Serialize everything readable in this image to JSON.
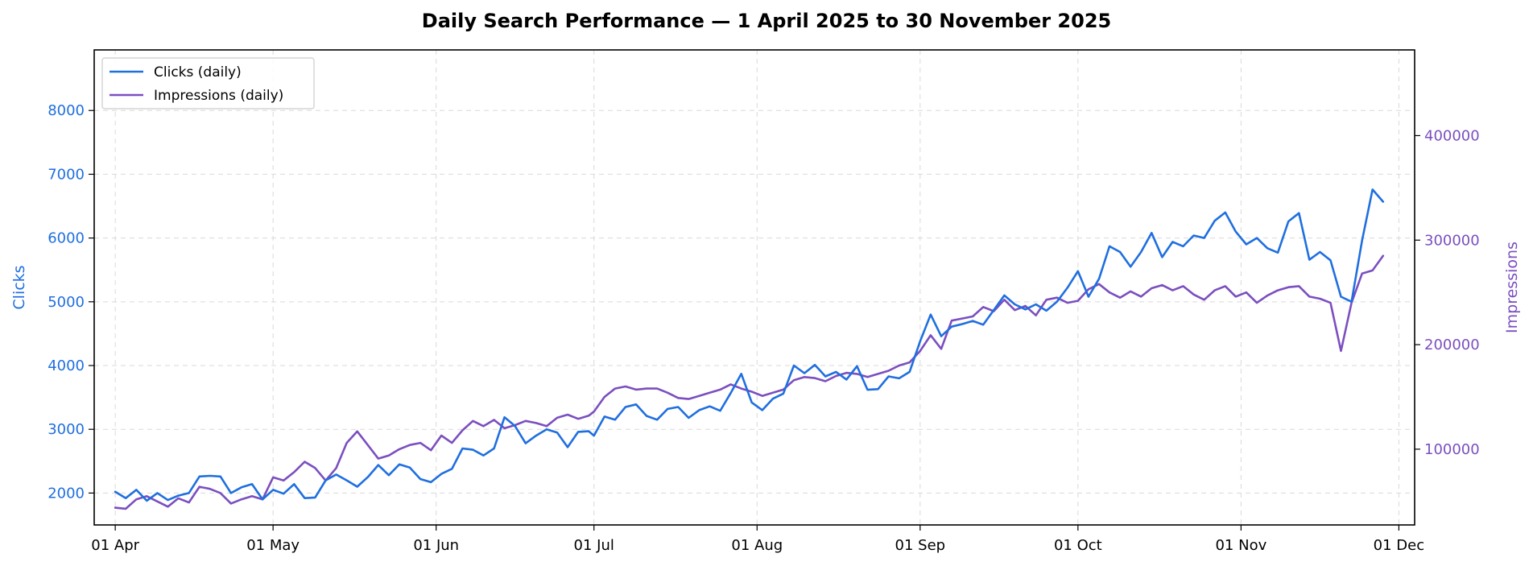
{
  "colors": {
    "clicks": "#1f6fdf",
    "impressions": "#7b4fbf"
  },
  "chart_data": {
    "type": "line",
    "title": "Daily Search Performance — 1 April 2025 to 30 November 2025",
    "xlabel": "",
    "ylabel": "Clicks",
    "y2label": "Impressions",
    "x_range": [
      "2025-03-28",
      "2025-12-04"
    ],
    "ylim": [
      1500,
      8950
    ],
    "y2lim": [
      27500,
      482000
    ],
    "x_ticks": [
      {
        "date": "2025-04-01",
        "label": "01 Apr"
      },
      {
        "date": "2025-05-01",
        "label": "01 May"
      },
      {
        "date": "2025-06-01",
        "label": "01 Jun"
      },
      {
        "date": "2025-07-01",
        "label": "01 Jul"
      },
      {
        "date": "2025-08-01",
        "label": "01 Aug"
      },
      {
        "date": "2025-09-01",
        "label": "01 Sep"
      },
      {
        "date": "2025-10-01",
        "label": "01 Oct"
      },
      {
        "date": "2025-11-01",
        "label": "01 Nov"
      },
      {
        "date": "2025-12-01",
        "label": "01 Dec"
      }
    ],
    "y_ticks": [
      2000,
      3000,
      4000,
      5000,
      6000,
      7000,
      8000
    ],
    "y2_ticks": [
      {
        "value": 100000,
        "label": "100000"
      },
      {
        "value": 200000,
        "label": "200000"
      },
      {
        "value": 300000,
        "label": "300000"
      },
      {
        "value": 400000,
        "label": "400000"
      }
    ],
    "grid": true,
    "legend_position": "top-left",
    "series": [
      {
        "name": "Clicks (daily)",
        "axis": "left",
        "points": [
          [
            "2025-04-01",
            2020
          ],
          [
            "2025-04-03",
            1920
          ],
          [
            "2025-04-05",
            2050
          ],
          [
            "2025-04-07",
            1880
          ],
          [
            "2025-04-09",
            2000
          ],
          [
            "2025-04-11",
            1890
          ],
          [
            "2025-04-13",
            1960
          ],
          [
            "2025-04-15",
            2000
          ],
          [
            "2025-04-17",
            2260
          ],
          [
            "2025-04-19",
            2270
          ],
          [
            "2025-04-21",
            2260
          ],
          [
            "2025-04-23",
            2000
          ],
          [
            "2025-04-25",
            2090
          ],
          [
            "2025-04-27",
            2140
          ],
          [
            "2025-04-29",
            1900
          ],
          [
            "2025-05-01",
            2050
          ],
          [
            "2025-05-03",
            1990
          ],
          [
            "2025-05-05",
            2140
          ],
          [
            "2025-05-07",
            1920
          ],
          [
            "2025-05-09",
            1930
          ],
          [
            "2025-05-11",
            2200
          ],
          [
            "2025-05-13",
            2290
          ],
          [
            "2025-05-15",
            2200
          ],
          [
            "2025-05-17",
            2100
          ],
          [
            "2025-05-19",
            2250
          ],
          [
            "2025-05-21",
            2440
          ],
          [
            "2025-05-23",
            2280
          ],
          [
            "2025-05-25",
            2450
          ],
          [
            "2025-05-27",
            2400
          ],
          [
            "2025-05-29",
            2220
          ],
          [
            "2025-05-31",
            2170
          ],
          [
            "2025-06-02",
            2300
          ],
          [
            "2025-06-04",
            2380
          ],
          [
            "2025-06-06",
            2700
          ],
          [
            "2025-06-08",
            2680
          ],
          [
            "2025-06-10",
            2590
          ],
          [
            "2025-06-12",
            2700
          ],
          [
            "2025-06-14",
            3190
          ],
          [
            "2025-06-16",
            3050
          ],
          [
            "2025-06-18",
            2780
          ],
          [
            "2025-06-20",
            2900
          ],
          [
            "2025-06-22",
            3000
          ],
          [
            "2025-06-24",
            2950
          ],
          [
            "2025-06-26",
            2720
          ],
          [
            "2025-06-28",
            2960
          ],
          [
            "2025-06-30",
            2970
          ],
          [
            "2025-07-01",
            2900
          ],
          [
            "2025-07-03",
            3200
          ],
          [
            "2025-07-05",
            3150
          ],
          [
            "2025-07-07",
            3350
          ],
          [
            "2025-07-09",
            3390
          ],
          [
            "2025-07-11",
            3210
          ],
          [
            "2025-07-13",
            3150
          ],
          [
            "2025-07-15",
            3320
          ],
          [
            "2025-07-17",
            3350
          ],
          [
            "2025-07-19",
            3180
          ],
          [
            "2025-07-21",
            3300
          ],
          [
            "2025-07-23",
            3360
          ],
          [
            "2025-07-25",
            3290
          ],
          [
            "2025-07-27",
            3570
          ],
          [
            "2025-07-29",
            3870
          ],
          [
            "2025-07-31",
            3420
          ],
          [
            "2025-08-02",
            3300
          ],
          [
            "2025-08-04",
            3480
          ],
          [
            "2025-08-06",
            3560
          ],
          [
            "2025-08-08",
            4000
          ],
          [
            "2025-08-10",
            3880
          ],
          [
            "2025-08-12",
            4010
          ],
          [
            "2025-08-14",
            3830
          ],
          [
            "2025-08-16",
            3900
          ],
          [
            "2025-08-18",
            3780
          ],
          [
            "2025-08-20",
            3990
          ],
          [
            "2025-08-22",
            3620
          ],
          [
            "2025-08-24",
            3630
          ],
          [
            "2025-08-26",
            3830
          ],
          [
            "2025-08-28",
            3800
          ],
          [
            "2025-08-30",
            3900
          ],
          [
            "2025-09-01",
            4380
          ],
          [
            "2025-09-03",
            4800
          ],
          [
            "2025-09-05",
            4460
          ],
          [
            "2025-09-07",
            4610
          ],
          [
            "2025-09-09",
            4650
          ],
          [
            "2025-09-11",
            4700
          ],
          [
            "2025-09-13",
            4640
          ],
          [
            "2025-09-15",
            4870
          ],
          [
            "2025-09-17",
            5100
          ],
          [
            "2025-09-19",
            4960
          ],
          [
            "2025-09-21",
            4880
          ],
          [
            "2025-09-23",
            4960
          ],
          [
            "2025-09-25",
            4860
          ],
          [
            "2025-09-27",
            5000
          ],
          [
            "2025-09-29",
            5220
          ],
          [
            "2025-10-01",
            5480
          ],
          [
            "2025-10-03",
            5080
          ],
          [
            "2025-10-05",
            5360
          ],
          [
            "2025-10-07",
            5870
          ],
          [
            "2025-10-09",
            5780
          ],
          [
            "2025-10-11",
            5550
          ],
          [
            "2025-10-13",
            5780
          ],
          [
            "2025-10-15",
            6080
          ],
          [
            "2025-10-17",
            5700
          ],
          [
            "2025-10-19",
            5940
          ],
          [
            "2025-10-21",
            5870
          ],
          [
            "2025-10-23",
            6040
          ],
          [
            "2025-10-25",
            6000
          ],
          [
            "2025-10-27",
            6270
          ],
          [
            "2025-10-29",
            6400
          ],
          [
            "2025-10-31",
            6100
          ],
          [
            "2025-11-02",
            5900
          ],
          [
            "2025-11-04",
            6000
          ],
          [
            "2025-11-06",
            5840
          ],
          [
            "2025-11-08",
            5770
          ],
          [
            "2025-11-10",
            6260
          ],
          [
            "2025-11-12",
            6390
          ],
          [
            "2025-11-14",
            5660
          ],
          [
            "2025-11-16",
            5780
          ],
          [
            "2025-11-18",
            5650
          ],
          [
            "2025-11-20",
            5080
          ],
          [
            "2025-11-22",
            5000
          ],
          [
            "2025-11-24",
            5960
          ],
          [
            "2025-11-26",
            6760
          ],
          [
            "2025-11-28",
            6570
          ]
        ]
      }
    ]
  }
}
